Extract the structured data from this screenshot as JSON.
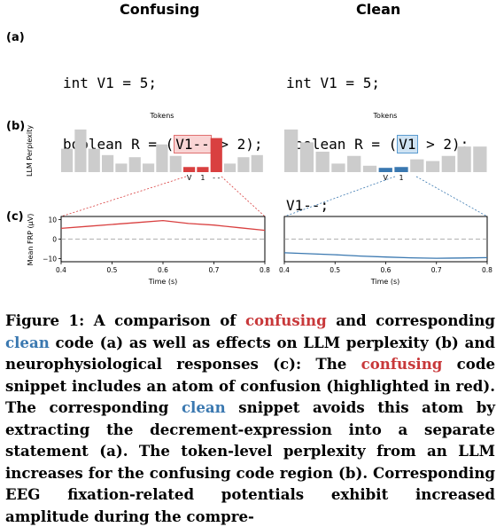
{
  "columns": {
    "left_title": "Confusing",
    "right_title": "Clean"
  },
  "panels": {
    "a": "(a)",
    "b": "(b)",
    "c": "(c)"
  },
  "code": {
    "confusing": {
      "line1": "int V1 = 5;",
      "line2_pre": "boolean R = (",
      "line2_hl": "V1--",
      "line2_post": " > 2);"
    },
    "clean": {
      "line1": "int V1 = 5;",
      "line2_pre": "boolean R = (",
      "line2_hl": "V1",
      "line2_post": " > 2);",
      "line3": "V1--;"
    }
  },
  "perplexity": {
    "tokens_label": "Tokens",
    "ylabel": "LLM Perplexity",
    "confusing": {
      "values": [
        0.55,
        1.0,
        0.55,
        0.4,
        0.2,
        0.35,
        0.2,
        0.65,
        0.38,
        0.12,
        0.12,
        0.8,
        0.2,
        0.35,
        0.4
      ],
      "highlight": [
        9,
        10,
        11
      ],
      "token_labels": [
        "V",
        "1",
        "- -"
      ]
    },
    "clean": {
      "values": [
        1.0,
        0.7,
        0.48,
        0.2,
        0.38,
        0.15,
        0.1,
        0.12,
        0.3,
        0.26,
        0.38,
        0.6,
        0.6
      ],
      "highlight": [
        6,
        7
      ],
      "token_labels": [
        "V",
        "1"
      ]
    }
  },
  "frp": {
    "ylabel": "Mean FRP (µV)",
    "xlabel": "Time (s)",
    "yticks": [
      "10",
      "0",
      "−10"
    ],
    "xticks": [
      "0.4",
      "0.5",
      "0.6",
      "0.7",
      "0.8"
    ]
  },
  "chart_data": [
    {
      "type": "bar",
      "title": "Tokens",
      "ylabel": "LLM Perplexity",
      "series": [
        {
          "values": [
            0.55,
            1.0,
            0.55,
            0.4,
            0.2,
            0.35,
            0.2,
            0.65,
            0.38,
            0.12,
            0.12,
            0.8,
            0.2,
            0.35,
            0.4
          ]
        }
      ]
    },
    {
      "type": "bar",
      "title": "Tokens",
      "series": [
        {
          "values": [
            1.0,
            0.7,
            0.48,
            0.2,
            0.38,
            0.15,
            0.1,
            0.12,
            0.3,
            0.26,
            0.38,
            0.6,
            0.6
          ]
        }
      ]
    },
    {
      "type": "line",
      "xlabel": "Time (s)",
      "ylabel": "Mean FRP (µV)",
      "xlim": [
        0.4,
        0.8
      ],
      "ylim": [
        -11,
        11
      ],
      "x": [
        0.4,
        0.45,
        0.5,
        0.55,
        0.6,
        0.65,
        0.7,
        0.75,
        0.8
      ],
      "series": [
        {
          "values": [
            5.5,
            6.5,
            7.5,
            8.5,
            9.5,
            8.0,
            7.2,
            5.8,
            4.5
          ]
        }
      ]
    },
    {
      "type": "line",
      "xlabel": "Time (s)",
      "xlim": [
        0.4,
        0.8
      ],
      "ylim": [
        -11,
        11
      ],
      "x": [
        0.4,
        0.45,
        0.5,
        0.55,
        0.6,
        0.65,
        0.7,
        0.75,
        0.8
      ],
      "series": [
        {
          "values": [
            -7.0,
            -7.5,
            -8.0,
            -8.7,
            -9.2,
            -9.6,
            -9.8,
            -9.7,
            -9.5
          ]
        }
      ]
    }
  ],
  "caption": {
    "p1": "Figure 1: A comparison of ",
    "w_confusing1": "confusing",
    "p2": " and corresponding ",
    "w_clean1": "clean",
    "p3": " code (a) as well as effects on LLM perplexity (b) and neurophysiological responses (c): The ",
    "w_confusing2": "confusing",
    "p4": " code snippet includes an atom of confusion (highlighted in red). The corresponding ",
    "w_clean2": "clean",
    "p5": " snippet avoids this atom by extracting the decrement-expression into a separate statement (a). The token-level perplexity from an LLM increases for the confusing code region (b). Corresponding EEG fixation-related potentials exhibit increased amplitude during the compre-"
  },
  "colors": {
    "gray_bar": "#cccccc",
    "red": "#d94040",
    "blue": "#3a78b0"
  }
}
